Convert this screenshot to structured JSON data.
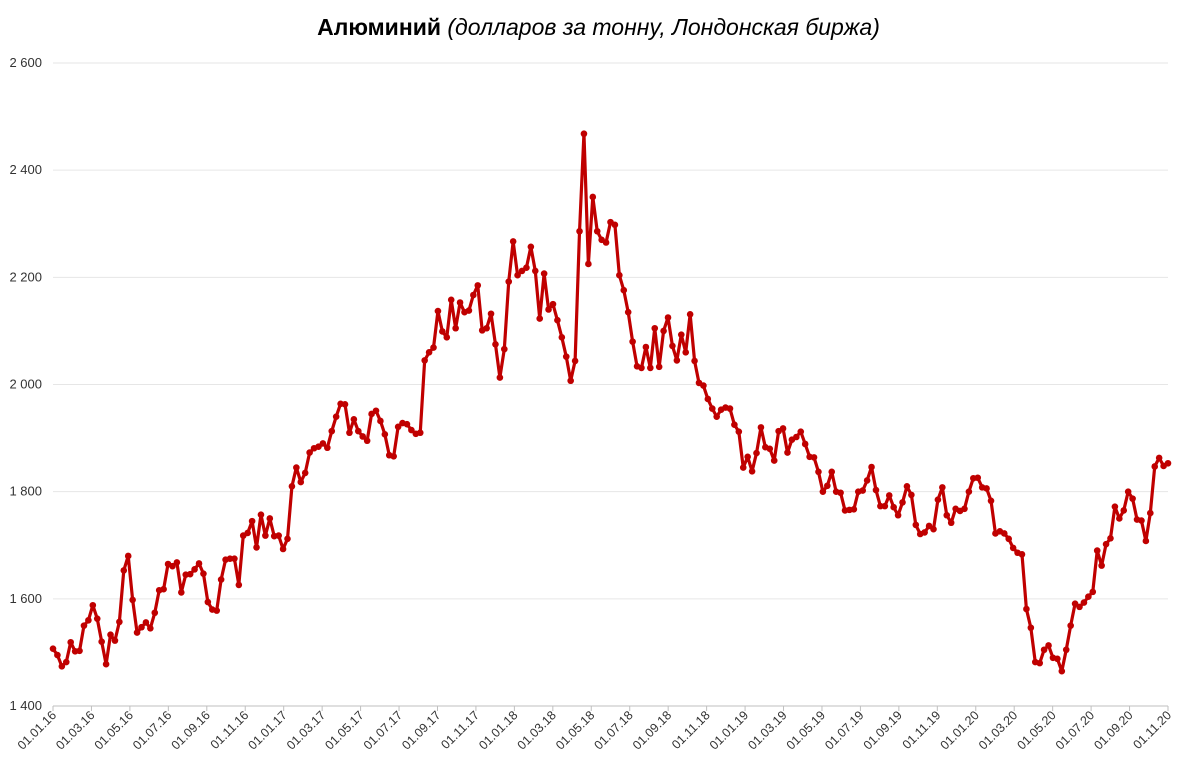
{
  "chart_data": {
    "type": "line",
    "title": "Алюминий",
    "subtitle": "(долларов за тонну, Лондонская биржа)",
    "xlabel": "",
    "ylabel": "",
    "ylim": [
      1400,
      2600
    ],
    "yticks": [
      1400,
      1600,
      1800,
      2000,
      2200,
      2400,
      2600
    ],
    "ytick_labels": [
      "1 400",
      "1 600",
      "1 800",
      "2 000",
      "2 200",
      "2 400",
      "2 600"
    ],
    "xticks": [
      "01.01.16",
      "01.03.16",
      "01.05.16",
      "01.07.16",
      "01.09.16",
      "01.11.16",
      "01.01.17",
      "01.03.17",
      "01.05.17",
      "01.07.17",
      "01.09.17",
      "01.11.17",
      "01.01.18",
      "01.03.18",
      "01.05.18",
      "01.07.18",
      "01.09.18",
      "01.11.18",
      "01.01.19",
      "01.03.19",
      "01.05.19",
      "01.07.19",
      "01.09.19",
      "01.11.19",
      "01.01.20",
      "01.03.20",
      "01.05.20",
      "01.07.20",
      "01.09.20",
      "01.11.20"
    ],
    "grid": true,
    "legend": "none",
    "line_color": "#c00000",
    "series": [
      {
        "values": [
          1507,
          1495,
          1474,
          1482,
          1519,
          1502,
          1503,
          1550,
          1560,
          1588,
          1563,
          1520,
          1478,
          1533,
          1522,
          1557,
          1653,
          1680,
          1598,
          1537,
          1547,
          1556,
          1545,
          1574,
          1616,
          1618,
          1665,
          1661,
          1668,
          1612,
          1645,
          1646,
          1655,
          1666,
          1647,
          1594,
          1580,
          1578,
          1636,
          1673,
          1675,
          1675,
          1626,
          1718,
          1723,
          1745,
          1696,
          1757,
          1718,
          1750,
          1717,
          1718,
          1693,
          1712,
          1810,
          1845,
          1818,
          1835,
          1873,
          1881,
          1884,
          1890,
          1882,
          1913,
          1940,
          1964,
          1963,
          1910,
          1935,
          1913,
          1903,
          1895,
          1945,
          1951,
          1932,
          1907,
          1868,
          1866,
          1921,
          1928,
          1926,
          1915,
          1908,
          1910,
          2045,
          2060,
          2069,
          2137,
          2099,
          2088,
          2158,
          2105,
          2153,
          2135,
          2138,
          2167,
          2185,
          2101,
          2105,
          2132,
          2075,
          2013,
          2066,
          2192,
          2267,
          2204,
          2212,
          2218,
          2257,
          2212,
          2123,
          2207,
          2140,
          2150,
          2120,
          2088,
          2052,
          2007,
          2044,
          2286,
          2468,
          2225,
          2350,
          2286,
          2270,
          2265,
          2303,
          2298,
          2204,
          2176,
          2135,
          2080,
          2034,
          2031,
          2070,
          2031,
          2105,
          2033,
          2100,
          2125,
          2072,
          2045,
          2093,
          2060,
          2131,
          2044,
          2003,
          1998,
          1973,
          1955,
          1940,
          1953,
          1957,
          1955,
          1925,
          1912,
          1845,
          1865,
          1838,
          1872,
          1920,
          1883,
          1880,
          1858,
          1913,
          1918,
          1873,
          1897,
          1902,
          1912,
          1889,
          1865,
          1864,
          1837,
          1800,
          1811,
          1837,
          1800,
          1798,
          1765,
          1766,
          1767,
          1800,
          1802,
          1821,
          1846,
          1803,
          1773,
          1773,
          1793,
          1771,
          1756,
          1780,
          1810,
          1794,
          1738,
          1721,
          1724,
          1736,
          1730,
          1785,
          1808,
          1756,
          1742,
          1768,
          1764,
          1768,
          1800,
          1825,
          1826,
          1808,
          1806,
          1783,
          1722,
          1726,
          1722,
          1712,
          1695,
          1686,
          1683,
          1581,
          1546,
          1482,
          1480,
          1505,
          1513,
          1490,
          1488,
          1465,
          1505,
          1550,
          1591,
          1585,
          1593,
          1604,
          1613,
          1690,
          1662,
          1702,
          1713,
          1772,
          1750,
          1765,
          1800,
          1787,
          1748,
          1746,
          1708,
          1760,
          1847,
          1863,
          1848,
          1853
        ]
      }
    ]
  }
}
